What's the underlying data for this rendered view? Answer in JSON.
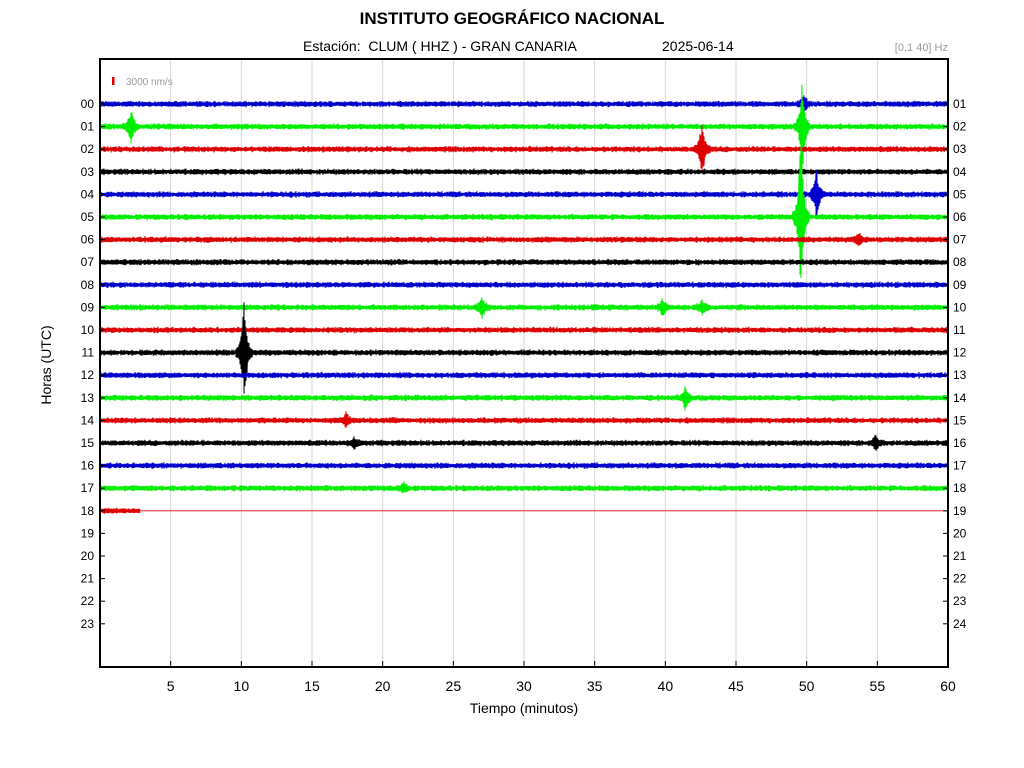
{
  "header": {
    "title": "INSTITUTO GEOGRÁFICO NACIONAL",
    "station_line": "Estación:  CLUM ( HHZ ) - GRAN CANARIA",
    "date": "2025-06-14",
    "filter": "[0.1 40] Hz"
  },
  "chart_data": {
    "type": "line",
    "title": "INSTITUTO GEOGRÁFICO NACIONAL",
    "xlabel": "Tiempo (minutos)",
    "ylabel": "Horas (UTC)",
    "xlim": [
      0,
      60
    ],
    "x_ticks": [
      "5",
      "10",
      "15",
      "20",
      "25",
      "30",
      "35",
      "40",
      "45",
      "50",
      "55",
      "60"
    ],
    "left_hour_labels": [
      "00",
      "01",
      "02",
      "03",
      "04",
      "05",
      "06",
      "07",
      "08",
      "09",
      "10",
      "11",
      "12",
      "13",
      "14",
      "15",
      "16",
      "17",
      "18",
      "19",
      "20",
      "21",
      "22",
      "23"
    ],
    "right_hour_labels": [
      "01",
      "02",
      "03",
      "04",
      "05",
      "06",
      "07",
      "08",
      "09",
      "10",
      "11",
      "12",
      "13",
      "14",
      "15",
      "16",
      "17",
      "18",
      "19",
      "20",
      "21",
      "22",
      "23",
      "24"
    ],
    "scale_label": "3000 nm/s",
    "grid": true,
    "trace_colors": [
      "#0000cc",
      "#00ee00",
      "#dd0000",
      "#000000"
    ],
    "recorded_until_minute": 2.9,
    "events": [
      {
        "hour": 0,
        "minute": 49.8,
        "amp": 0.35
      },
      {
        "hour": 1,
        "minute": 2.2,
        "amp": 0.7
      },
      {
        "hour": 1,
        "minute": 49.7,
        "amp": 1.8
      },
      {
        "hour": 2,
        "minute": 42.6,
        "amp": 1.2
      },
      {
        "hour": 4,
        "minute": 50.7,
        "amp": 1.0
      },
      {
        "hour": 5,
        "minute": 49.6,
        "amp": 3.5
      },
      {
        "hour": 6,
        "minute": 53.7,
        "amp": 0.25
      },
      {
        "hour": 9,
        "minute": 27.0,
        "amp": 0.45
      },
      {
        "hour": 9,
        "minute": 39.8,
        "amp": 0.35
      },
      {
        "hour": 9,
        "minute": 42.6,
        "amp": 0.3
      },
      {
        "hour": 11,
        "minute": 10.2,
        "amp": 2.3
      },
      {
        "hour": 13,
        "minute": 41.4,
        "amp": 0.4
      },
      {
        "hour": 14,
        "minute": 17.4,
        "amp": 0.25
      },
      {
        "hour": 15,
        "minute": 18.0,
        "amp": 0.2
      },
      {
        "hour": 15,
        "minute": 54.9,
        "amp": 0.3
      },
      {
        "hour": 17,
        "minute": 21.5,
        "amp": 0.2
      }
    ]
  }
}
